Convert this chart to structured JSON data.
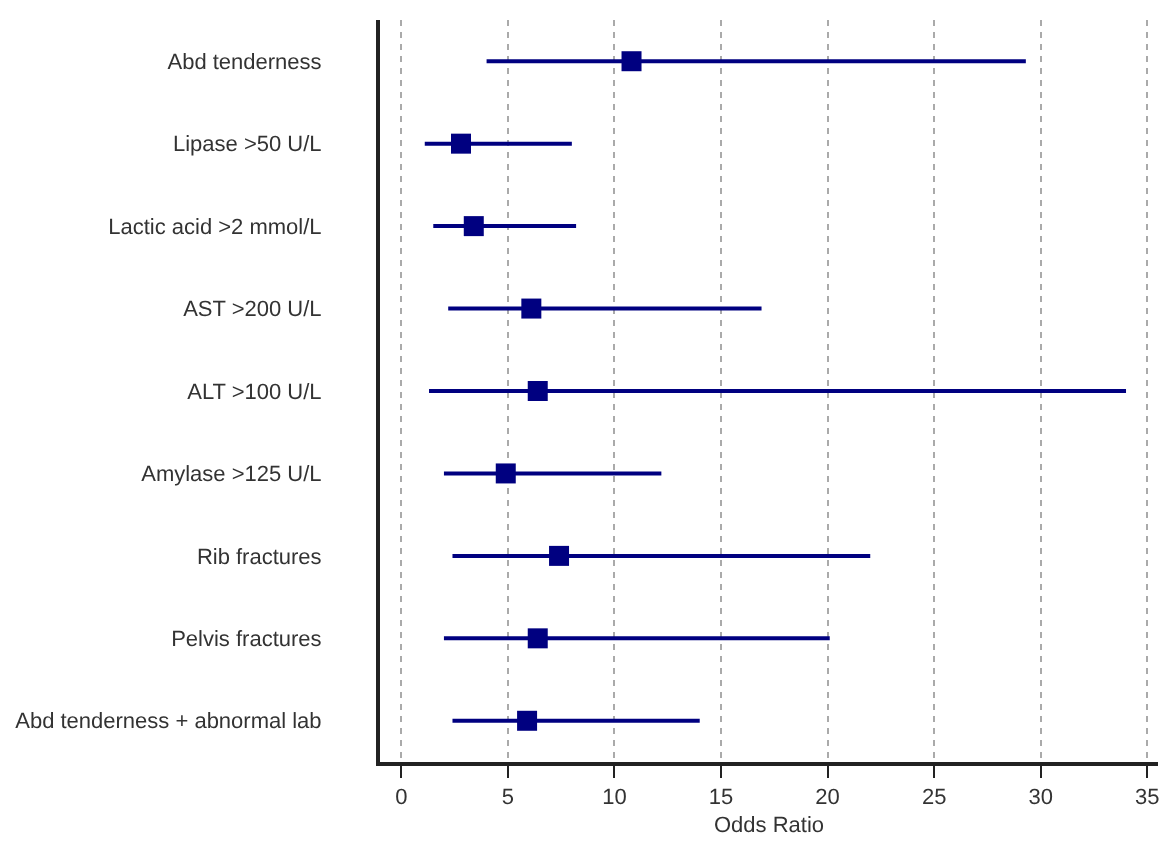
{
  "chart_data": {
    "type": "scatter",
    "orientation": "horizontal",
    "xlabel": "Odds Ratio",
    "categories": [
      "Abd tenderness",
      "Lipase >50 U/L",
      "Lactic acid >2 mmol/L",
      "AST >200 U/L",
      "ALT >100 U/L",
      "Amylase >125 U/L",
      "Rib fractures",
      "Pelvis fractures",
      "Abd tenderness + abnormal lab"
    ],
    "values": [
      10.8,
      2.8,
      3.4,
      6.1,
      6.4,
      4.9,
      7.4,
      6.4,
      5.9
    ],
    "errors": [
      [
        4.0,
        29.3
      ],
      [
        1.1,
        8.0
      ],
      [
        1.5,
        8.2
      ],
      [
        2.2,
        16.9
      ],
      [
        1.3,
        34.0
      ],
      [
        2.0,
        12.2
      ],
      [
        2.4,
        22.0
      ],
      [
        2.0,
        20.1
      ],
      [
        2.4,
        14.0
      ]
    ],
    "color": "#000080",
    "marker": "square",
    "xlim": [
      -1,
      35.5
    ],
    "xticks": [
      0,
      5,
      10,
      15,
      20,
      25,
      30,
      35
    ],
    "grid": "x",
    "legend": false
  }
}
